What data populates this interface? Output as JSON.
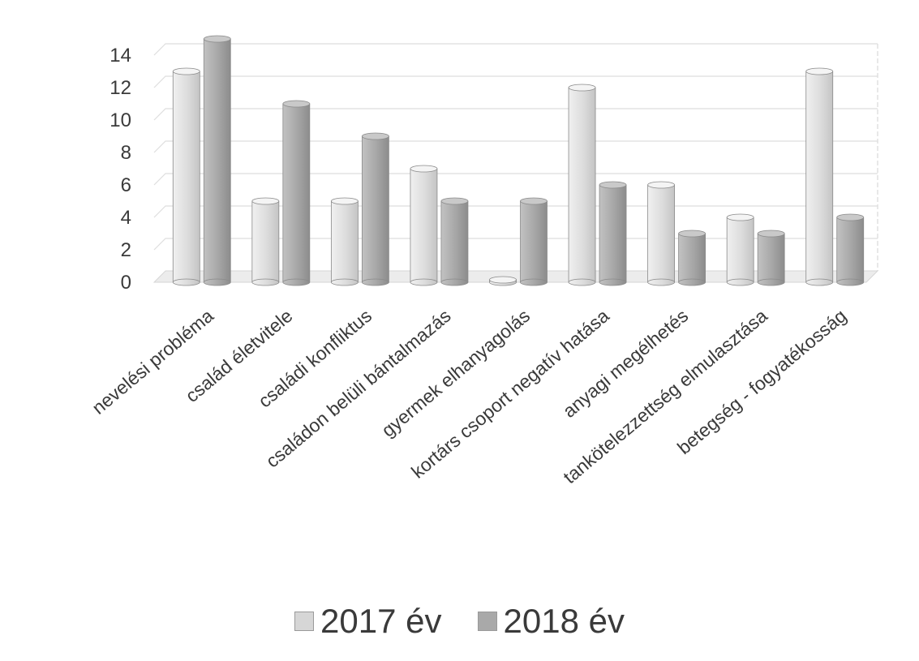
{
  "chart_data": {
    "type": "bar",
    "categories": [
      "nevelési probléma",
      "család életvitele",
      "családi konfliktus",
      "családon belüli bántalmazás",
      "gyermek elhanyagolás",
      "kortárs csoport negatív hatása",
      "anyagi megélhetés",
      "tankötelezzettség elmulasztása",
      "betegség - fogyatékosság"
    ],
    "series": [
      {
        "name": "2017 év",
        "values": [
          13,
          5,
          5,
          7,
          0,
          12,
          6,
          4,
          13
        ],
        "color": "#d6d6d6"
      },
      {
        "name": "2018 év",
        "values": [
          15,
          11,
          9,
          5,
          5,
          6,
          3,
          3,
          4
        ],
        "color": "#a9a9a9"
      }
    ],
    "ylim": [
      0,
      14
    ],
    "yticks": [
      "0",
      "2",
      "4",
      "6",
      "8",
      "10",
      "12",
      "14"
    ],
    "grid": true,
    "legend_position": "bottom",
    "title": "",
    "xlabel": "",
    "ylabel": ""
  }
}
